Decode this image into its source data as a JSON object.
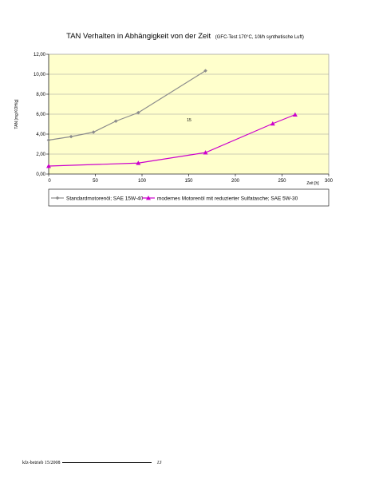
{
  "chart_data": {
    "type": "line",
    "title": "TAN Verhalten in Abhängigkeit von der Zeit",
    "subtitle": "(GFC-Test 170°C, 10l/h synthetische Luft)",
    "xlabel": "Zeit [h]",
    "ylabel": "TAN [mg KOH/g]",
    "xlim": [
      0,
      300
    ],
    "ylim": [
      0,
      12
    ],
    "x_ticks": [
      "0",
      "50",
      "100",
      "150",
      "200",
      "250",
      "300"
    ],
    "y_ticks": [
      "0,00",
      "2,00",
      "4,00",
      "6,00",
      "8,00",
      "10,00",
      "12,00"
    ],
    "grid": true,
    "legend_position": "bottom",
    "plot_background": "#ffffcc",
    "series": [
      {
        "name": "Standardmotorenöl; SAE 15W-40",
        "color": "#8c8c8c",
        "marker": "diamond",
        "x": [
          0,
          24,
          48,
          72,
          96,
          168
        ],
        "y": [
          3.4,
          3.75,
          4.2,
          5.3,
          6.15,
          10.35
        ]
      },
      {
        "name": "modernes Motorenöl mit reduzierter Sulfatasche; SAE 5W-30",
        "color": "#cc00cc",
        "marker": "triangle",
        "x": [
          0,
          96,
          168,
          240,
          264
        ],
        "y": [
          0.8,
          1.1,
          2.15,
          5.05,
          5.95
        ]
      }
    ],
    "annotations": [
      "15"
    ]
  },
  "footer": {
    "source": "kfz-betrieb 15/2008",
    "page": "13"
  }
}
